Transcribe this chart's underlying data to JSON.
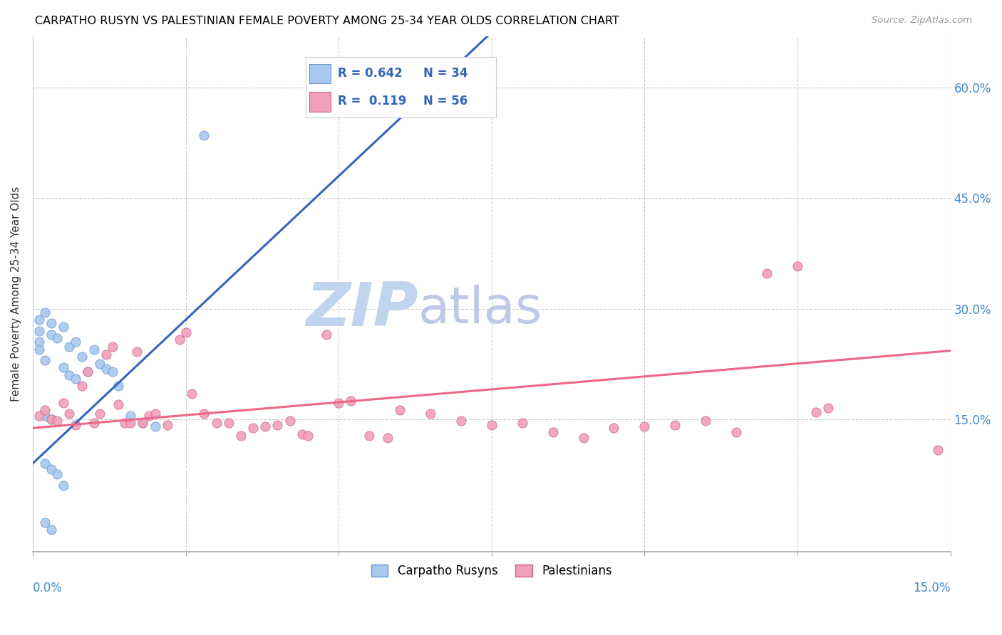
{
  "title": "CARPATHO RUSYN VS PALESTINIAN FEMALE POVERTY AMONG 25-34 YEAR OLDS CORRELATION CHART",
  "source": "Source: ZipAtlas.com",
  "ylabel": "Female Poverty Among 25-34 Year Olds",
  "yaxis_labels": [
    "15.0%",
    "30.0%",
    "45.0%",
    "60.0%"
  ],
  "yaxis_ticks": [
    0.15,
    0.3,
    0.45,
    0.6
  ],
  "xlim": [
    0.0,
    0.15
  ],
  "ylim": [
    -0.03,
    0.67
  ],
  "color_blue": "#A8C8F0",
  "color_blue_edge": "#6699CC",
  "color_pink": "#F0A0B8",
  "color_pink_edge": "#CC6688",
  "color_trend_blue": "#3366BB",
  "color_trend_pink": "#EE6688",
  "color_axis_label": "#4488CC",
  "watermark_zip_color": "#C0D4EE",
  "watermark_atlas_color": "#C0C8E8",
  "label1": "Carpatho Rusyns",
  "label2": "Palestinians",
  "blue_slope": 7.8,
  "blue_intercept": 0.09,
  "pink_slope": 0.7,
  "pink_intercept": 0.138,
  "blue_x": [
    0.001,
    0.001,
    0.001,
    0.001,
    0.002,
    0.002,
    0.002,
    0.003,
    0.003,
    0.003,
    0.004,
    0.005,
    0.005,
    0.006,
    0.006,
    0.007,
    0.007,
    0.008,
    0.009,
    0.01,
    0.011,
    0.012,
    0.013,
    0.014,
    0.016,
    0.018,
    0.02,
    0.002,
    0.003,
    0.004,
    0.005,
    0.003,
    0.002,
    0.028
  ],
  "blue_y": [
    0.285,
    0.27,
    0.255,
    0.245,
    0.295,
    0.23,
    0.155,
    0.28,
    0.265,
    0.15,
    0.26,
    0.275,
    0.22,
    0.248,
    0.21,
    0.255,
    0.205,
    0.235,
    0.215,
    0.245,
    0.225,
    0.218,
    0.215,
    0.195,
    0.155,
    0.145,
    0.14,
    0.09,
    0.082,
    0.075,
    0.06,
    0.0,
    0.01,
    0.535
  ],
  "pink_x": [
    0.001,
    0.002,
    0.003,
    0.004,
    0.005,
    0.006,
    0.007,
    0.008,
    0.009,
    0.01,
    0.011,
    0.012,
    0.013,
    0.014,
    0.015,
    0.016,
    0.017,
    0.018,
    0.019,
    0.02,
    0.022,
    0.024,
    0.025,
    0.026,
    0.028,
    0.03,
    0.032,
    0.034,
    0.036,
    0.038,
    0.04,
    0.042,
    0.044,
    0.045,
    0.048,
    0.05,
    0.052,
    0.055,
    0.058,
    0.06,
    0.065,
    0.07,
    0.075,
    0.08,
    0.085,
    0.09,
    0.095,
    0.1,
    0.105,
    0.11,
    0.115,
    0.12,
    0.125,
    0.128,
    0.13,
    0.148
  ],
  "pink_y": [
    0.155,
    0.162,
    0.15,
    0.148,
    0.172,
    0.158,
    0.142,
    0.195,
    0.215,
    0.145,
    0.158,
    0.238,
    0.248,
    0.17,
    0.145,
    0.145,
    0.242,
    0.145,
    0.155,
    0.158,
    0.142,
    0.258,
    0.268,
    0.185,
    0.158,
    0.145,
    0.145,
    0.128,
    0.138,
    0.14,
    0.142,
    0.148,
    0.13,
    0.128,
    0.265,
    0.172,
    0.175,
    0.128,
    0.125,
    0.162,
    0.158,
    0.148,
    0.142,
    0.145,
    0.132,
    0.125,
    0.138,
    0.14,
    0.142,
    0.148,
    0.132,
    0.348,
    0.358,
    0.16,
    0.165,
    0.108
  ]
}
